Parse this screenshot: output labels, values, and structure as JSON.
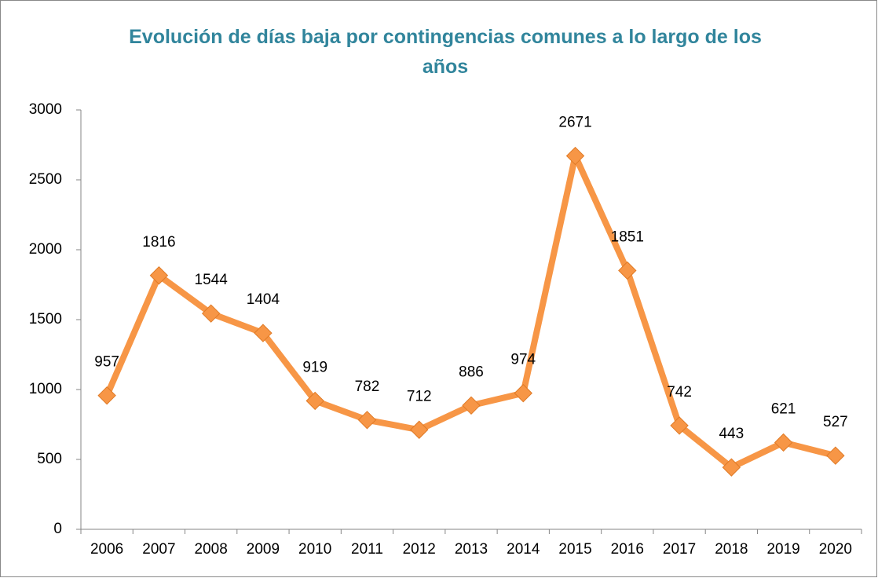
{
  "chart_data": {
    "type": "line",
    "title": "Evolución de días baja por contingencias comunes a lo largo de los años",
    "categories": [
      "2006",
      "2007",
      "2008",
      "2009",
      "2010",
      "2011",
      "2012",
      "2013",
      "2014",
      "2015",
      "2016",
      "2017",
      "2018",
      "2019",
      "2020"
    ],
    "series": [
      {
        "color": "#f79646",
        "values": [
          957,
          1816,
          1544,
          1404,
          919,
          782,
          712,
          886,
          974,
          2671,
          1851,
          742,
          443,
          621,
          527
        ]
      }
    ],
    "ylim": [
      0,
      3000
    ],
    "yticks": [
      0,
      500,
      1000,
      1500,
      2000,
      2500,
      3000
    ],
    "grid": false
  }
}
